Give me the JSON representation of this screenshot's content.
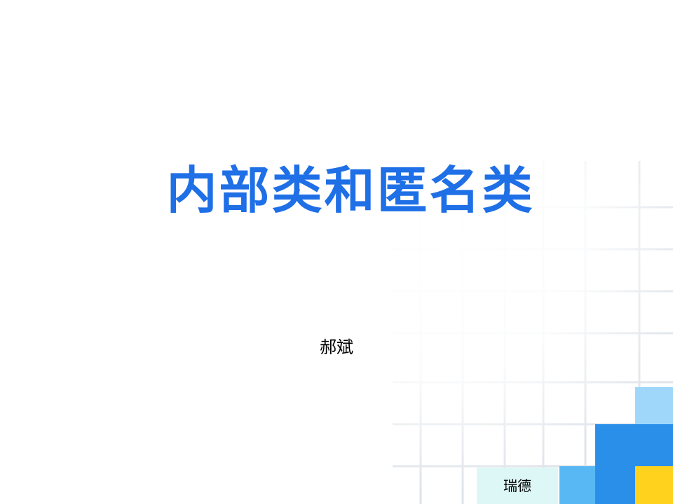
{
  "slide": {
    "title": "内部类和匿名类",
    "author": "郝斌",
    "footer_label": "瑞德"
  },
  "colors": {
    "title": "#1f6fe6",
    "block_light_blue": "#9fd7fb",
    "block_mid_blue": "#58b8f4",
    "block_blue": "#2a8fe8",
    "block_yellow": "#ffd21e",
    "footer_bg": "#ddf7f6",
    "grid_line": "#dfe4ea"
  }
}
